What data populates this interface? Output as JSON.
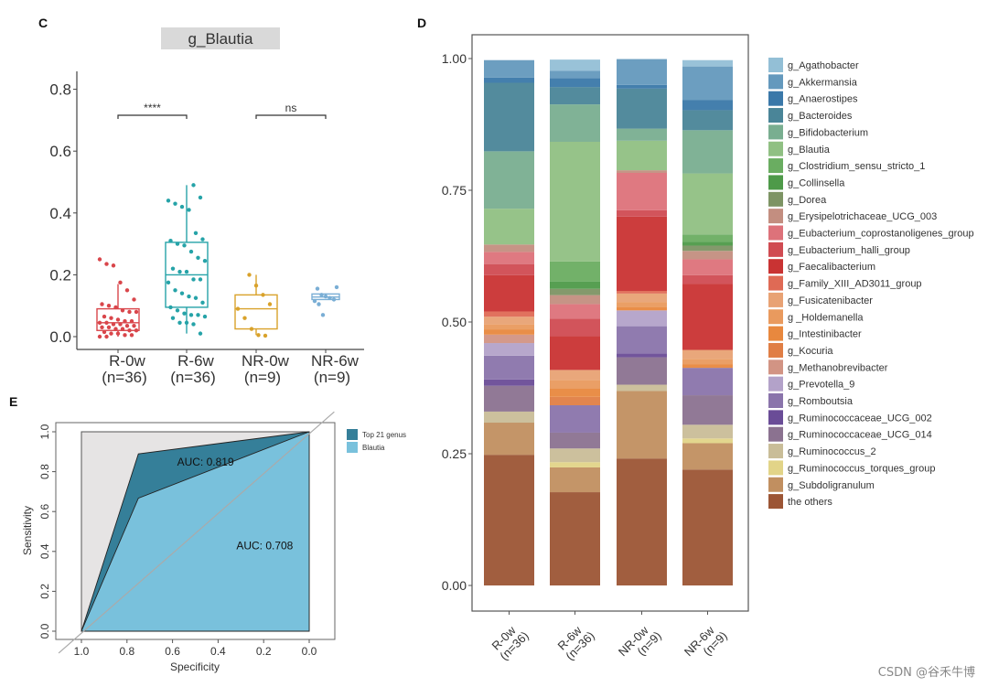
{
  "watermark": "CSDN @谷禾牛博",
  "chart_data": [
    {
      "panel": "C",
      "type": "box",
      "title": "g_Blautia",
      "xlabel": "",
      "ylabel": "",
      "ylim": [
        -0.03,
        0.85
      ],
      "yticks": [
        0.0,
        0.2,
        0.4,
        0.6,
        0.8
      ],
      "ytick_labels": [
        "0.0",
        "0.2",
        "0.4",
        "0.6",
        "0.8"
      ],
      "categories": [
        "R-0w",
        "R-6w",
        "NR-0w",
        "NR-6w"
      ],
      "category_n": [
        "(n=36)",
        "(n=36)",
        "(n=9)",
        "(n=9)"
      ],
      "colors": [
        "#d9464b",
        "#26a3a8",
        "#d9a22b",
        "#7aaed5"
      ],
      "boxes": [
        {
          "name": "R-0w",
          "whisker_low": 0.0,
          "q1": 0.02,
          "median": 0.045,
          "q3": 0.09,
          "whisker_high": 0.17,
          "points": [
            0.25,
            0.235,
            0.23,
            0.175,
            0.15,
            0.12,
            0.105,
            0.1,
            0.095,
            0.085,
            0.08,
            0.08,
            0.065,
            0.06,
            0.055,
            0.05,
            0.05,
            0.045,
            0.045,
            0.04,
            0.04,
            0.035,
            0.035,
            0.03,
            0.03,
            0.025,
            0.025,
            0.02,
            0.02,
            0.015,
            0.01,
            0.01,
            0.005,
            0.005,
            0.0,
            0.0
          ]
        },
        {
          "name": "R-6w",
          "whisker_low": 0.01,
          "q1": 0.095,
          "median": 0.2,
          "q3": 0.305,
          "whisker_high": 0.49,
          "points": [
            0.49,
            0.45,
            0.44,
            0.43,
            0.42,
            0.41,
            0.335,
            0.315,
            0.31,
            0.3,
            0.295,
            0.275,
            0.255,
            0.245,
            0.22,
            0.21,
            0.21,
            0.185,
            0.185,
            0.175,
            0.15,
            0.14,
            0.13,
            0.125,
            0.11,
            0.095,
            0.085,
            0.075,
            0.07,
            0.07,
            0.065,
            0.06,
            0.045,
            0.045,
            0.04,
            0.01
          ]
        },
        {
          "name": "NR-0w",
          "whisker_low": 0.005,
          "q1": 0.025,
          "median": 0.09,
          "q3": 0.135,
          "whisker_high": 0.2,
          "points": [
            0.2,
            0.165,
            0.135,
            0.105,
            0.09,
            0.06,
            0.025,
            0.005,
            0.003
          ]
        },
        {
          "name": "NR-6w",
          "whisker_low": 0.12,
          "q1": 0.12,
          "median": 0.128,
          "q3": 0.138,
          "whisker_high": 0.14,
          "points": [
            0.16,
            0.155,
            0.135,
            0.13,
            0.125,
            0.12,
            0.115,
            0.105,
            0.07
          ]
        }
      ],
      "annotations": [
        {
          "from": "R-0w",
          "to": "R-6w",
          "label": "****",
          "y": 0.71
        },
        {
          "from": "NR-0w",
          "to": "NR-6w",
          "label": "ns",
          "y": 0.71
        }
      ]
    },
    {
      "panel": "D",
      "type": "bar",
      "stacked": true,
      "title": "",
      "xlabel": "",
      "ylabel": "",
      "ylim": [
        0,
        1.0
      ],
      "yticks": [
        0.0,
        0.25,
        0.5,
        0.75,
        1.0
      ],
      "ytick_labels": [
        "0.00",
        "0.25",
        "0.50",
        "0.75",
        "1.00"
      ],
      "categories": [
        "R-0w\n(n=36)",
        "R-6w\n(n=36)",
        "NR-0w\n(n=9)",
        "NR-6w\n(n=9)"
      ],
      "category_labels": [
        [
          "R-0w",
          "(n=36)"
        ],
        [
          "R-6w",
          "(n=36)"
        ],
        [
          "NR-0w",
          "(n=9)"
        ],
        [
          "NR-6w",
          "(n=9)"
        ]
      ],
      "legend_position": "right",
      "series": [
        {
          "name": "g_Agathobacter",
          "color": "#93bfd6",
          "values": [
            0.0,
            0.021,
            0.0,
            0.012
          ]
        },
        {
          "name": "g_Akkermansia",
          "color": "#6499bd",
          "values": [
            0.033,
            0.014,
            0.049,
            0.064
          ]
        },
        {
          "name": "g_Anaerostipes",
          "color": "#3a78a9",
          "values": [
            0.01,
            0.017,
            0.007,
            0.019
          ]
        },
        {
          "name": "g_Bacteroides",
          "color": "#4a8598",
          "values": [
            0.13,
            0.033,
            0.076,
            0.038
          ]
        },
        {
          "name": "g_Bifidobacterium",
          "color": "#79ae90",
          "values": [
            0.109,
            0.071,
            0.023,
            0.082
          ]
        },
        {
          "name": "g_Blautia",
          "color": "#90c083",
          "values": [
            0.068,
            0.227,
            0.056,
            0.116
          ]
        },
        {
          "name": "g_Clostridium_sensu_stricto_1",
          "color": "#6aad61",
          "values": [
            0.0,
            0.038,
            0.0,
            0.014
          ]
        },
        {
          "name": "g_Collinsella",
          "color": "#4e9a49",
          "values": [
            0.0,
            0.014,
            0.0,
            0.007
          ]
        },
        {
          "name": "g_Dorea",
          "color": "#7d9464",
          "values": [
            0.0,
            0.012,
            0.0,
            0.01
          ]
        },
        {
          "name": "g_Erysipelotrichaceae_UCG_003",
          "color": "#c38e80",
          "values": [
            0.014,
            0.017,
            0.005,
            0.016
          ]
        },
        {
          "name": "g_Eubacterium_coprostanoligenes_group",
          "color": "#dd727a",
          "values": [
            0.023,
            0.028,
            0.071,
            0.03
          ]
        },
        {
          "name": "g_Eubacterium_halli_group",
          "color": "#d04b52",
          "values": [
            0.021,
            0.033,
            0.012,
            0.017
          ]
        },
        {
          "name": "g_Faecalibacterium",
          "color": "#c93333",
          "values": [
            0.069,
            0.064,
            0.141,
            0.125
          ]
        },
        {
          "name": "g_Family_XIII_AD3011_group",
          "color": "#df6a55",
          "values": [
            0.01,
            0.0,
            0.005,
            0.0
          ]
        },
        {
          "name": "g_Fusicatenibacter",
          "color": "#e8a274",
          "values": [
            0.014,
            0.019,
            0.016,
            0.017
          ]
        },
        {
          "name": "g _Holdemanella",
          "color": "#e99a5e",
          "values": [
            0.01,
            0.016,
            0.009,
            0.01
          ]
        },
        {
          "name": "g_Intestinibacter",
          "color": "#e8883e",
          "values": [
            0.01,
            0.016,
            0.007,
            0.007
          ]
        },
        {
          "name": "g_Kocuria",
          "color": "#e07e45",
          "values": [
            0.0,
            0.016,
            0.0,
            0.0
          ]
        },
        {
          "name": "g_Methanobrevibacter",
          "color": "#d29484",
          "values": [
            0.016,
            0.0,
            0.0,
            0.0
          ]
        },
        {
          "name": "g_Prevotella_9",
          "color": "#b3a2c9",
          "values": [
            0.024,
            0.0,
            0.03,
            0.0
          ]
        },
        {
          "name": "g_Romboutsia",
          "color": "#8a74ab",
          "values": [
            0.045,
            0.052,
            0.052,
            0.052
          ]
        },
        {
          "name": "g_Ruminococcaceae_UCG_002",
          "color": "#6a4c97",
          "values": [
            0.012,
            0.0,
            0.007,
            0.0
          ]
        },
        {
          "name": "g_Ruminococcaceae_UCG_014",
          "color": "#8b7290",
          "values": [
            0.049,
            0.03,
            0.052,
            0.056
          ]
        },
        {
          "name": "g_Ruminococcus_2",
          "color": "#c9bd98",
          "values": [
            0.021,
            0.026,
            0.012,
            0.026
          ]
        },
        {
          "name": "g_Ruminococcus_torques_group",
          "color": "#e2d488",
          "values": [
            0.0,
            0.01,
            0.0,
            0.009
          ]
        },
        {
          "name": "g_Subdoligranulum",
          "color": "#c18f60",
          "values": [
            0.061,
            0.047,
            0.128,
            0.05
          ]
        },
        {
          "name": "the others",
          "color": "#9c5535",
          "values": [
            0.248,
            0.177,
            0.241,
            0.22
          ]
        }
      ]
    },
    {
      "panel": "E",
      "type": "area",
      "subtype": "roc",
      "title": "",
      "xlabel": "Specificity",
      "ylabel": "Sensitivity",
      "xlim": [
        1.1,
        -0.1
      ],
      "ylim": [
        -0.04,
        1.04
      ],
      "xticks": [
        1.0,
        0.8,
        0.6,
        0.4,
        0.2,
        0.0
      ],
      "xtick_labels": [
        "1.0",
        "0.8",
        "0.6",
        "0.4",
        "0.2",
        "0.0"
      ],
      "yticks": [
        0.0,
        0.2,
        0.4,
        0.6,
        0.8,
        1.0
      ],
      "ytick_labels": [
        "0.0",
        "0.2",
        "0.4",
        "0.6",
        "0.8",
        "1.0"
      ],
      "legend_position": "right",
      "series": [
        {
          "name": "Top 21 genus",
          "color": "#357f99",
          "auc_label": "AUC: 0.819",
          "points": [
            [
              1.0,
              0.0
            ],
            [
              0.75,
              0.889
            ],
            [
              0.0,
              1.0
            ]
          ],
          "label_at": [
            0.58,
            0.83
          ]
        },
        {
          "name": "Blautia",
          "color": "#79c1dc",
          "auc_label": "AUC: 0.708",
          "points": [
            [
              1.0,
              0.0
            ],
            [
              0.75,
              0.667
            ],
            [
              0.0,
              1.0
            ]
          ],
          "label_at": [
            0.32,
            0.41
          ]
        }
      ],
      "diagonal": true
    }
  ],
  "panels": {
    "c_letter": "C",
    "d_letter": "D",
    "e_letter": "E"
  }
}
